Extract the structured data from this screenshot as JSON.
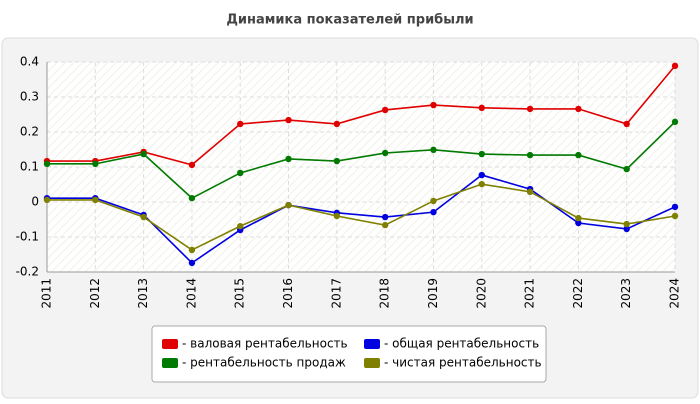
{
  "chart_data": {
    "type": "line",
    "title": "Динамика показателей прибыли",
    "categories": [
      "2011",
      "2012",
      "2013",
      "2014",
      "2015",
      "2016",
      "2017",
      "2018",
      "2019",
      "2020",
      "2021",
      "2022",
      "2023",
      "2024"
    ],
    "ylim": [
      -0.2,
      0.4
    ],
    "yticks": [
      0.4,
      0.3,
      0.2,
      0.1,
      0,
      -0.1,
      -0.2
    ],
    "grid": true,
    "series": [
      {
        "name": "- валовая рентабельность",
        "color": "#e00000",
        "values": [
          0.117,
          0.117,
          0.143,
          0.106,
          0.223,
          0.234,
          0.223,
          0.263,
          0.277,
          0.269,
          0.266,
          0.266,
          0.223,
          0.389
        ]
      },
      {
        "name": "- рентабельность продаж",
        "color": "#007a00",
        "values": [
          0.109,
          0.109,
          0.137,
          0.011,
          0.083,
          0.123,
          0.117,
          0.14,
          0.149,
          0.137,
          0.134,
          0.134,
          0.094,
          0.229
        ]
      },
      {
        "name": "- общая рентабельность",
        "color": "#0000e0",
        "values": [
          0.011,
          0.011,
          -0.037,
          -0.174,
          -0.08,
          -0.009,
          -0.031,
          -0.043,
          -0.029,
          0.077,
          0.037,
          -0.06,
          -0.077,
          -0.014
        ]
      },
      {
        "name": "- чистая рентабельность",
        "color": "#808000",
        "values": [
          0.006,
          0.006,
          -0.043,
          -0.137,
          -0.069,
          -0.009,
          -0.04,
          -0.066,
          0.003,
          0.051,
          0.029,
          -0.046,
          -0.063,
          -0.04
        ]
      }
    ]
  }
}
